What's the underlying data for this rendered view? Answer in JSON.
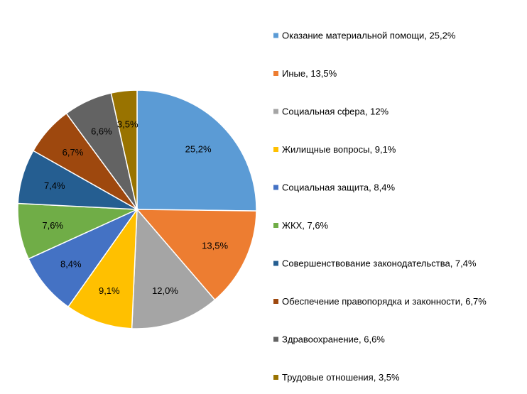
{
  "chart_data": {
    "type": "pie",
    "title": "",
    "legend_position": "right",
    "slices": [
      {
        "name": "Оказание материальной помощи",
        "value": 25.2,
        "label": "25,2%",
        "legend": "Оказание материальной помощи, 25,2%",
        "color": "#5B9BD5"
      },
      {
        "name": "Иные",
        "value": 13.5,
        "label": "13,5%",
        "legend": "Иные, 13,5%",
        "color": "#ED7D31"
      },
      {
        "name": "Социальная сфера",
        "value": 12.0,
        "label": "12,0%",
        "legend": "Социальная сфера, 12%",
        "color": "#A5A5A5"
      },
      {
        "name": "Жилищные вопросы",
        "value": 9.1,
        "label": "9,1%",
        "legend": "Жилищные вопросы, 9,1%",
        "color": "#FFC000"
      },
      {
        "name": "Социальная защита",
        "value": 8.4,
        "label": "8,4%",
        "legend": "Социальная защита, 8,4%",
        "color": "#4472C4"
      },
      {
        "name": "ЖКХ",
        "value": 7.6,
        "label": "7,6%",
        "legend": "ЖКХ, 7,6%",
        "color": "#70AD47"
      },
      {
        "name": "Совершенствование законодательства",
        "value": 7.4,
        "label": "7,4%",
        "legend": "Совершенствование законодательства, 7,4%",
        "color": "#255E91"
      },
      {
        "name": "Обеспечение правопорядка и законности",
        "value": 6.7,
        "label": "6,7%",
        "legend": "Обеспечение правопорядка и законности, 6,7%",
        "color": "#9E480E"
      },
      {
        "name": "Здравоохранение",
        "value": 6.6,
        "label": "6,6%",
        "legend": "Здравоохранение, 6,6%",
        "color": "#636363"
      },
      {
        "name": "Трудовые отношения",
        "value": 3.5,
        "label": "3,5%",
        "legend": "Трудовые отношения, 3,5%",
        "color": "#997300"
      }
    ]
  }
}
